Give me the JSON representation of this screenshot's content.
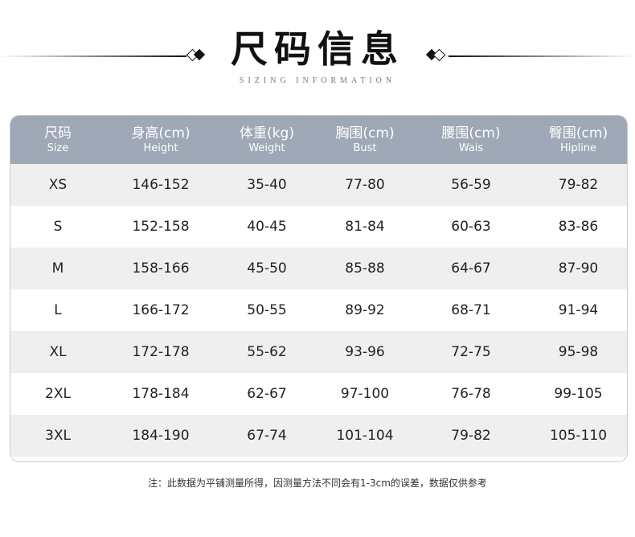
{
  "title": "尺码信息",
  "subtitle": "SIZING INFORMATION",
  "header": [
    {
      "cn": "尺码",
      "en": "Size"
    },
    {
      "cn": "身高(cm)",
      "en": "Height"
    },
    {
      "cn": "体重(kg)",
      "en": "Weight"
    },
    {
      "cn": "胸围(cm)",
      "en": "Bust"
    },
    {
      "cn": "腰围(cm)",
      "en": "Wais"
    },
    {
      "cn": "臀围(cm)",
      "en": "Hipline"
    }
  ],
  "rows": [
    [
      "XS",
      "146-152",
      "35-40",
      "77-80",
      "56-59",
      "79-82"
    ],
    [
      "S",
      "152-158",
      "40-45",
      "81-84",
      "60-63",
      "83-86"
    ],
    [
      "M",
      "158-166",
      "45-50",
      "85-88",
      "64-67",
      "87-90"
    ],
    [
      "L",
      "166-172",
      "50-55",
      "89-92",
      "68-71",
      "91-94"
    ],
    [
      "XL",
      "172-178",
      "55-62",
      "93-96",
      "72-75",
      "95-98"
    ],
    [
      "2XL",
      "178-184",
      "62-67",
      "97-100",
      "76-78",
      "99-105"
    ],
    [
      "3XL",
      "184-190",
      "67-74",
      "101-104",
      "79-82",
      "105-110"
    ]
  ],
  "note": "注：此数据为平铺测量所得，因测量方法不同会有1-3cm的误差，数据仅供参考",
  "colors": {
    "header_bg": "#9ea8b6",
    "stripe": "#efefef"
  }
}
